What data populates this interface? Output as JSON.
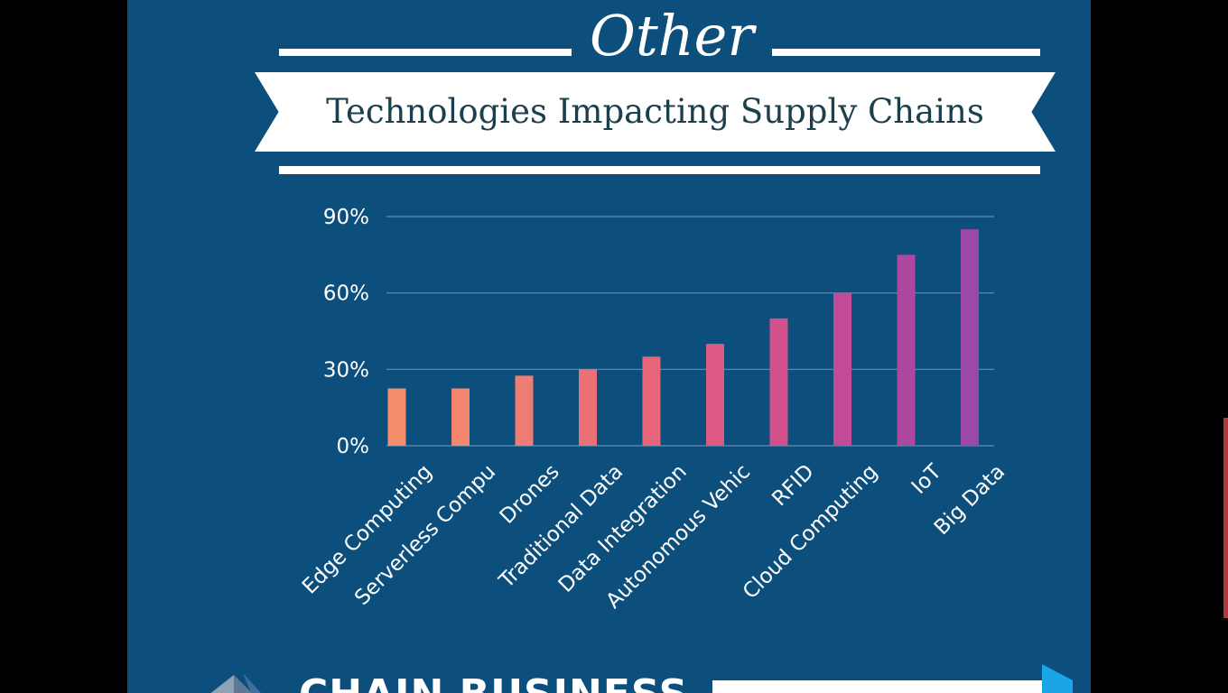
{
  "header": {
    "kicker": "Other",
    "banner": "Technologies Impacting Supply Chains"
  },
  "logo": {
    "text": "CHAIN BUSINESS"
  },
  "colors": {
    "background": "#0d4f7c",
    "bar_start": "#f48e6c",
    "bar_end": "#9b48a6"
  },
  "chart_data": {
    "type": "bar",
    "title": "",
    "xlabel": "",
    "ylabel": "",
    "categories": [
      "Edge Computing",
      "Serverless Compu",
      "Drones",
      "Traditional Data",
      "Data Integration",
      "Autonomous Vehic",
      "RFID",
      "Cloud Computing",
      "IoT",
      "Big Data"
    ],
    "values": [
      22.5,
      22.5,
      27.5,
      30,
      35,
      40,
      50,
      60,
      75,
      85
    ],
    "bar_colors": [
      "#f48e6c",
      "#f2866e",
      "#ef7c72",
      "#ec7176",
      "#e6657b",
      "#de5a84",
      "#d2508c",
      "#c24b98",
      "#ad48a1",
      "#9b48a6"
    ],
    "ylim": [
      0,
      90
    ],
    "yticks": [
      0,
      30,
      60,
      90
    ],
    "ytick_labels": [
      "0%",
      "30%",
      "60%",
      "90%"
    ],
    "grid": true,
    "legend": "none"
  }
}
